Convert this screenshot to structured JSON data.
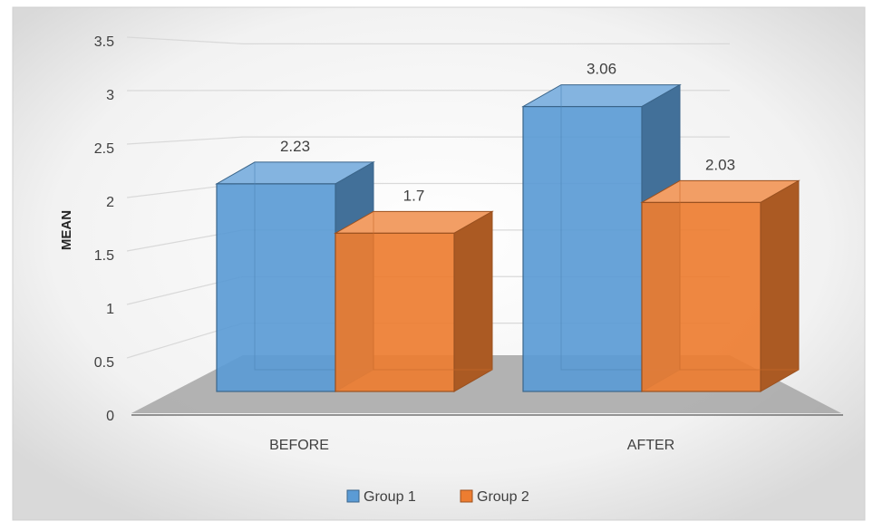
{
  "chart_data": {
    "type": "bar",
    "style": "3d-clustered-column",
    "categories": [
      "BEFORE",
      "AFTER"
    ],
    "series": [
      {
        "name": "Group 1",
        "values": [
          2.23,
          3.06
        ],
        "data_labels": [
          "2.23",
          "3.06"
        ],
        "color": "#5b9bd5"
      },
      {
        "name": "Group 2",
        "values": [
          1.7,
          2.03
        ],
        "data_labels": [
          "1.7",
          "2.03"
        ],
        "color": "#ed7d31"
      }
    ],
    "ylabel": "MEAN",
    "xlabel": "",
    "ylim": [
      0,
      3.5
    ],
    "yticks": [
      "0",
      "0.5",
      "1",
      "1.5",
      "2",
      "2.5",
      "3",
      "3.5"
    ],
    "grid": true,
    "legend_position": "bottom",
    "background_color": "#f2f2f2",
    "floor_color": "#a6a6a6"
  }
}
